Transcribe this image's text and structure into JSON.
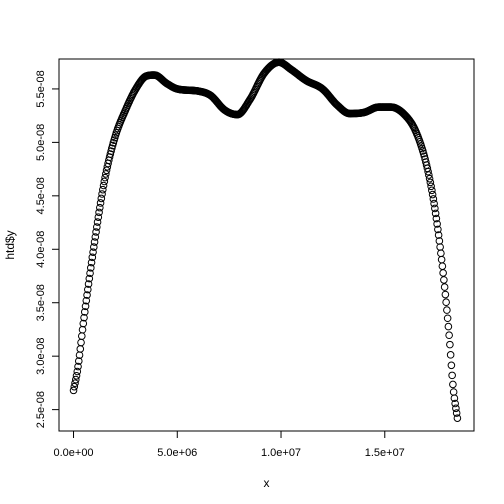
{
  "chart_data": {
    "type": "scatter",
    "title": "",
    "xlabel": "x",
    "ylabel": "htd$y",
    "xlim": [
      -700000,
      19300000
    ],
    "ylim": [
      2.3e-08,
      5.78e-08
    ],
    "x_ticks": [
      {
        "value": 0,
        "label": "0.0e+00"
      },
      {
        "value": 5000000,
        "label": "5.0e+06"
      },
      {
        "value": 10000000,
        "label": "1.0e+07"
      },
      {
        "value": 15000000,
        "label": "1.5e+07"
      }
    ],
    "y_ticks": [
      {
        "value": 2.5e-08,
        "label": "2.5e-08"
      },
      {
        "value": 3e-08,
        "label": "3.0e-08"
      },
      {
        "value": 3.5e-08,
        "label": "3.5e-08"
      },
      {
        "value": 4e-08,
        "label": "4.0e-08"
      },
      {
        "value": 4.5e-08,
        "label": "4.5e-08"
      },
      {
        "value": 5e-08,
        "label": "5.0e-08"
      },
      {
        "value": 5.5e-08,
        "label": "5.5e-08"
      }
    ],
    "x_range": [
      0,
      18500000
    ],
    "n_points": 512,
    "point_shape": "open-circle",
    "grid": false,
    "curve_knots": [
      [
        0,
        2.68e-08
      ],
      [
        200000,
        2.88e-08
      ],
      [
        500000,
        3.35e-08
      ],
      [
        1000000,
        4.05e-08
      ],
      [
        1500000,
        4.65e-08
      ],
      [
        2000000,
        5.05e-08
      ],
      [
        2500000,
        5.3e-08
      ],
      [
        3000000,
        5.5e-08
      ],
      [
        3500000,
        5.62e-08
      ],
      [
        3900000,
        5.63e-08
      ],
      [
        4500000,
        5.55e-08
      ],
      [
        5000000,
        5.5e-08
      ],
      [
        6000000,
        5.48e-08
      ],
      [
        6600000,
        5.44e-08
      ],
      [
        7300000,
        5.3e-08
      ],
      [
        7900000,
        5.26e-08
      ],
      [
        8500000,
        5.4e-08
      ],
      [
        9200000,
        5.65e-08
      ],
      [
        9900000,
        5.75e-08
      ],
      [
        10500000,
        5.68e-08
      ],
      [
        11200000,
        5.58e-08
      ],
      [
        12000000,
        5.5e-08
      ],
      [
        12700000,
        5.35e-08
      ],
      [
        13300000,
        5.27e-08
      ],
      [
        14000000,
        5.28e-08
      ],
      [
        14700000,
        5.33e-08
      ],
      [
        15300000,
        5.33e-08
      ],
      [
        16000000,
        5.25e-08
      ],
      [
        16500000,
        5.1e-08
      ],
      [
        17000000,
        4.8e-08
      ],
      [
        17400000,
        4.4e-08
      ],
      [
        17800000,
        3.8e-08
      ],
      [
        18100000,
        3.2e-08
      ],
      [
        18300000,
        2.7e-08
      ],
      [
        18500000,
        2.42e-08
      ]
    ]
  }
}
